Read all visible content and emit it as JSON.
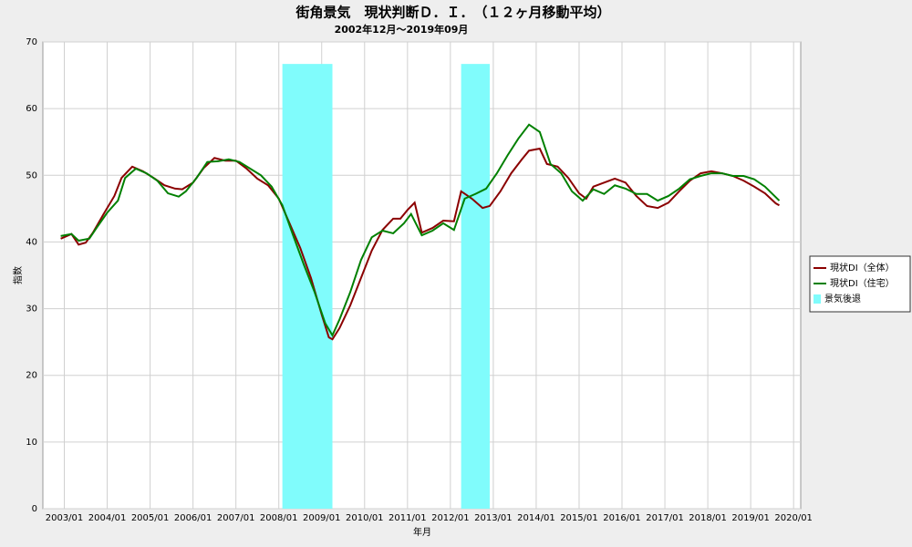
{
  "chart_data": {
    "type": "line",
    "title": "街角景気　現状判断Ｄ．Ｉ．　（１２ヶ月移動平均）",
    "subtitle": "2002年12月～2019年09月",
    "x_label": "年月",
    "y_label": "指数",
    "xlim": [
      "2002/07",
      "2020/03"
    ],
    "xticks": [
      "2003/01",
      "2004/01",
      "2005/01",
      "2006/01",
      "2007/01",
      "2008/01",
      "2009/01",
      "2010/01",
      "2011/01",
      "2012/01",
      "2013/01",
      "2014/01",
      "2015/01",
      "2016/01",
      "2017/01",
      "2018/01",
      "2019/01",
      "2020/01"
    ],
    "ylim": [
      0,
      70
    ],
    "yticks": [
      0,
      10,
      20,
      30,
      40,
      50,
      60,
      70
    ],
    "grid": true,
    "legend": "right",
    "bands": {
      "name": "景気後退",
      "color": "#80fcfc",
      "height": 66.7,
      "periods": [
        [
          "2008/02",
          "2009/03"
        ],
        [
          "2012/04",
          "2012/11"
        ]
      ]
    },
    "series": [
      {
        "name": "現状DI（全体）",
        "color": "#8b0000",
        "x": [
          "2002/12",
          "2003/03",
          "2003/05",
          "2003/07",
          "2003/09",
          "2003/12",
          "2004/03",
          "2004/05",
          "2004/08",
          "2004/11",
          "2005/02",
          "2005/05",
          "2005/08",
          "2005/10",
          "2006/01",
          "2006/04",
          "2006/07",
          "2006/10",
          "2007/01",
          "2007/04",
          "2007/07",
          "2007/10",
          "2008/01",
          "2008/04",
          "2008/07",
          "2008/10",
          "2009/01",
          "2009/03",
          "2009/04",
          "2009/06",
          "2009/09",
          "2009/12",
          "2010/03",
          "2010/06",
          "2010/09",
          "2010/11",
          "2011/01",
          "2011/03",
          "2011/05",
          "2011/08",
          "2011/11",
          "2012/02",
          "2012/04",
          "2012/07",
          "2012/10",
          "2012/12",
          "2013/03",
          "2013/06",
          "2013/09",
          "2013/11",
          "2014/02",
          "2014/04",
          "2014/07",
          "2014/10",
          "2015/01",
          "2015/03",
          "2015/05",
          "2015/08",
          "2015/11",
          "2016/02",
          "2016/05",
          "2016/08",
          "2016/11",
          "2017/02",
          "2017/05",
          "2017/08",
          "2017/11",
          "2018/02",
          "2018/05",
          "2018/08",
          "2018/11",
          "2019/02",
          "2019/05",
          "2019/08",
          "2019/09"
        ],
        "values": [
          40.5,
          41.2,
          39.6,
          39.9,
          41.4,
          44.2,
          46.9,
          49.6,
          51.3,
          50.6,
          49.6,
          48.5,
          48.0,
          47.9,
          48.9,
          51.1,
          52.6,
          52.2,
          52.2,
          51.0,
          49.5,
          48.5,
          46.5,
          42.8,
          39.1,
          34.6,
          29.1,
          25.7,
          25.4,
          27.1,
          30.5,
          34.6,
          38.7,
          41.8,
          43.5,
          43.5,
          44.8,
          45.9,
          41.4,
          42.1,
          43.2,
          43.1,
          47.6,
          46.5,
          45.1,
          45.4,
          47.6,
          50.3,
          52.4,
          53.7,
          54.0,
          51.7,
          51.3,
          49.6,
          47.3,
          46.5,
          48.3,
          48.9,
          49.5,
          48.9,
          46.9,
          45.4,
          45.1,
          45.9,
          47.6,
          49.2,
          50.3,
          50.6,
          50.3,
          49.9,
          49.2,
          48.3,
          47.3,
          45.8,
          45.5
        ]
      },
      {
        "name": "現状DI（住宅）",
        "color": "#008000",
        "x": [
          "2002/12",
          "2003/03",
          "2003/05",
          "2003/08",
          "2003/10",
          "2004/01",
          "2004/04",
          "2004/06",
          "2004/09",
          "2004/12",
          "2005/03",
          "2005/06",
          "2005/09",
          "2005/11",
          "2006/02",
          "2006/05",
          "2006/08",
          "2006/11",
          "2007/02",
          "2007/05",
          "2007/08",
          "2007/11",
          "2008/02",
          "2008/05",
          "2008/08",
          "2008/11",
          "2009/02",
          "2009/04",
          "2009/06",
          "2009/09",
          "2009/12",
          "2010/03",
          "2010/06",
          "2010/09",
          "2010/12",
          "2011/02",
          "2011/05",
          "2011/08",
          "2011/11",
          "2012/02",
          "2012/05",
          "2012/08",
          "2012/11",
          "2013/02",
          "2013/05",
          "2013/08",
          "2013/11",
          "2014/02",
          "2014/05",
          "2014/08",
          "2014/11",
          "2015/02",
          "2015/05",
          "2015/08",
          "2015/11",
          "2016/02",
          "2016/05",
          "2016/08",
          "2016/11",
          "2017/02",
          "2017/05",
          "2017/08",
          "2017/11",
          "2018/02",
          "2018/05",
          "2018/08",
          "2018/11",
          "2019/02",
          "2019/05",
          "2019/09"
        ],
        "values": [
          40.9,
          41.2,
          40.2,
          40.5,
          42.1,
          44.4,
          46.2,
          49.6,
          51.0,
          50.3,
          49.2,
          47.3,
          46.8,
          47.6,
          49.6,
          52.0,
          52.1,
          52.4,
          52.0,
          51.0,
          50.0,
          48.3,
          45.5,
          41.0,
          36.6,
          32.5,
          27.8,
          26.0,
          28.4,
          32.5,
          37.3,
          40.7,
          41.7,
          41.3,
          42.8,
          44.2,
          41.0,
          41.7,
          42.8,
          41.8,
          46.5,
          47.2,
          48.0,
          50.3,
          53.0,
          55.5,
          57.6,
          56.5,
          51.7,
          50.3,
          47.6,
          46.2,
          47.9,
          47.2,
          48.5,
          48.0,
          47.2,
          47.2,
          46.2,
          46.9,
          48.0,
          49.4,
          49.9,
          50.3,
          50.3,
          49.9,
          49.9,
          49.4,
          48.3,
          46.2
        ]
      }
    ]
  }
}
